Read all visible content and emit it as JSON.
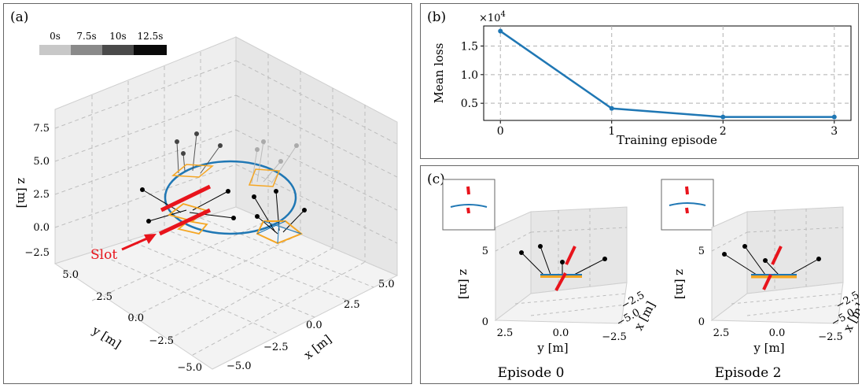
{
  "panels": {
    "a": {
      "label": "(a)",
      "time_legend": [
        {
          "label": "0s",
          "color": "#c8c8c8"
        },
        {
          "label": "7.5s",
          "color": "#8a8a8a"
        },
        {
          "label": "10s",
          "color": "#4a4a4a"
        },
        {
          "label": "12.5s",
          "color": "#0a0a0a"
        }
      ],
      "z_label": "z [m]",
      "z_ticks": [
        "7.5",
        "5.0",
        "2.5",
        "0.0",
        "−2.5"
      ],
      "y_label": "y [m]",
      "y_ticks": [
        "5.0",
        "2.5",
        "0.0",
        "−2.5",
        "−5.0"
      ],
      "x_label": "x [m]",
      "x_ticks": [
        "−5.0",
        "−2.5",
        "0.0",
        "2.5",
        "5.0"
      ],
      "slot_label": "Slot",
      "colors": {
        "trajectory": "#1f77b4",
        "slot": "#e8141c",
        "payload": "#f5a623"
      }
    },
    "b": {
      "label": "(b)",
      "multiplier": "×10",
      "multiplier_exp": "4",
      "ylabel": "Mean loss",
      "xlabel": "Training episode"
    },
    "c": {
      "label": "(c)",
      "z_label": "z [m]",
      "z_ticks": [
        "5",
        "0"
      ],
      "y_label": "y [m]",
      "y_ticks": [
        "2.5",
        "0.0",
        "−2.5"
      ],
      "x_label": "x [m]",
      "x_ticks": [
        "−2.5",
        "−5.0"
      ],
      "episode_left": "Episode 0",
      "episode_right": "Episode 2"
    }
  },
  "chart_data": [
    {
      "type": "line",
      "title": "",
      "xlabel": "Training episode",
      "ylabel": "Mean loss",
      "x": [
        0,
        1,
        2,
        3
      ],
      "series": [
        {
          "values": [
            17600,
            4100,
            2600,
            2600
          ],
          "color": "#1f77b4"
        }
      ],
      "x_ticks": [
        0,
        1,
        2,
        3
      ],
      "y_ticks": [
        5000,
        10000,
        15000
      ],
      "y_tick_labels": [
        "0.5",
        "1.0",
        "1.5"
      ],
      "xlim": [
        -0.15,
        3.15
      ],
      "ylim": [
        2000,
        18500
      ],
      "grid": true
    }
  ]
}
